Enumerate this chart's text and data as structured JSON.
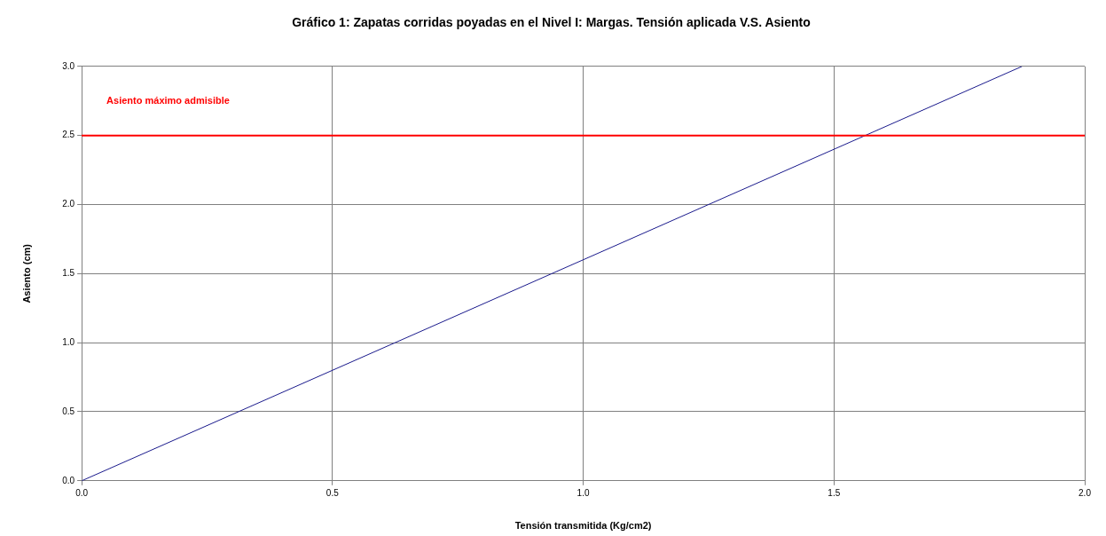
{
  "chart_data": {
    "type": "line",
    "title": "Gráfico 1: Zapatas corridas poyadas en el Nivel I: Margas. Tensión aplicada V.S. Asiento",
    "xlabel": "Tensión transmitida (Kg/cm2)",
    "ylabel": "Asiento (cm)",
    "x": [
      0,
      1.875
    ],
    "series": [
      {
        "color": "#1a1a8c",
        "values": [
          0,
          3.0
        ]
      }
    ],
    "xlim": [
      0,
      2.0
    ],
    "xticks": [
      {
        "value": 0,
        "label": "0.0"
      },
      {
        "value": 0.5,
        "label": "0.5"
      },
      {
        "value": 1,
        "label": "1.0"
      },
      {
        "value": 1.5,
        "label": "1.5"
      },
      {
        "value": 2,
        "label": "2.0"
      }
    ],
    "ylim": [
      0,
      3.0
    ],
    "yticks": [
      {
        "value": 0,
        "label": "0.0"
      },
      {
        "value": 0.5,
        "label": "0.5"
      },
      {
        "value": 1,
        "label": "1.0"
      },
      {
        "value": 1.5,
        "label": "1.5"
      },
      {
        "value": 2,
        "label": "2.0"
      },
      {
        "value": 2.5,
        "label": "2.5"
      },
      {
        "value": 3,
        "label": "3.0"
      }
    ],
    "ref_lines": [
      {
        "axis": "y",
        "value": 2.5,
        "label": "Asiento máximo admisible",
        "color": "#ff0000"
      }
    ],
    "grid": true,
    "legend": false,
    "marker": "none",
    "line_style": "solid"
  }
}
